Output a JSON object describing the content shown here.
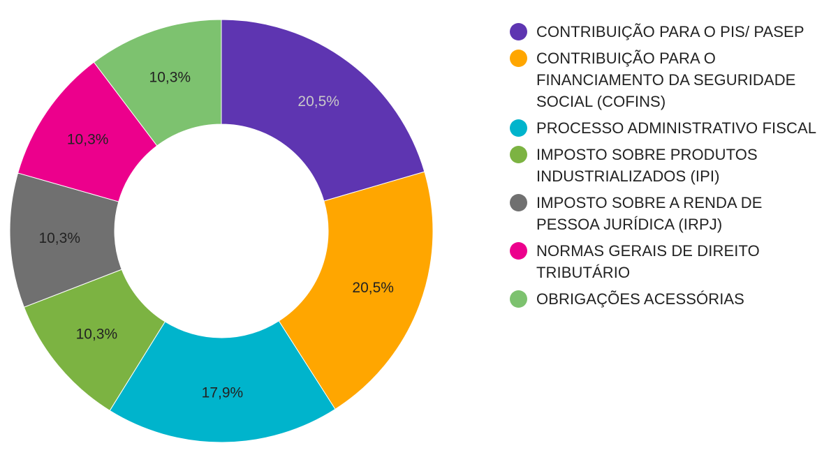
{
  "chart_data": {
    "type": "pie",
    "variant": "donut",
    "unit": "%",
    "slices": [
      {
        "label": "CONTRIBUIÇÃO PARA O PIS/ PASEP",
        "value": 20.5,
        "display": "20,5%",
        "color": "#5e35b1",
        "label_color": "#c9c9c9"
      },
      {
        "label": "CONTRIBUIÇÃO PARA O FINANCIAMENTO DA SEGURIDADE SOCIAL (COFINS)",
        "value": 20.5,
        "display": "20,5%",
        "color": "#ffa600",
        "label_color": "#222222"
      },
      {
        "label": "PROCESSO ADMINISTRATIVO FISCAL",
        "value": 17.9,
        "display": "17,9%",
        "color": "#00b4cc",
        "label_color": "#222222"
      },
      {
        "label": "IMPOSTO SOBRE PRODUTOS INDUSTRIALIZADOS (IPI)",
        "value": 10.3,
        "display": "10,3%",
        "color": "#7cb342",
        "label_color": "#222222"
      },
      {
        "label": "IMPOSTO SOBRE A RENDA DE PESSOA JURÍDICA (IRPJ)",
        "value": 10.3,
        "display": "10,3%",
        "color": "#707070",
        "label_color": "#222222"
      },
      {
        "label": "NORMAS GERAIS DE DIREITO TRIBUTÁRIO",
        "value": 10.3,
        "display": "10,3%",
        "color": "#ec008c",
        "label_color": "#222222"
      },
      {
        "label": "OBRIGAÇÕES ACESSÓRIAS",
        "value": 10.3,
        "display": "10,3%",
        "color": "#7dc26f",
        "label_color": "#222222"
      }
    ],
    "legend_position": "right"
  }
}
